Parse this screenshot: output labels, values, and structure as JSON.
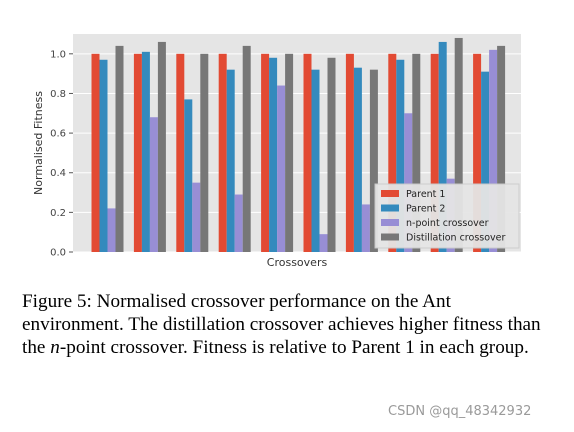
{
  "chart_data": {
    "type": "bar",
    "xlabel": "Crossovers",
    "ylabel": "Normalised Fitness",
    "ylim": [
      0,
      1.1
    ],
    "yticks": [
      "0.0",
      "0.2",
      "0.4",
      "0.6",
      "0.8",
      "1.0"
    ],
    "grid": true,
    "legend_position": "lower-right",
    "series": [
      {
        "name": "Parent 1",
        "color": "#e24a33",
        "values": [
          1.0,
          1.0,
          1.0,
          1.0,
          1.0,
          1.0,
          1.0,
          1.0,
          1.0,
          1.0
        ]
      },
      {
        "name": "Parent 2",
        "color": "#348abd",
        "values": [
          0.97,
          1.01,
          0.77,
          0.92,
          0.98,
          0.92,
          0.93,
          0.97,
          1.06,
          0.91
        ]
      },
      {
        "name": "n-point crossover",
        "color": "#988ed5",
        "values": [
          0.22,
          0.68,
          0.35,
          0.29,
          0.84,
          0.09,
          0.24,
          0.7,
          0.37,
          1.02
        ]
      },
      {
        "name": "Distillation crossover",
        "color": "#777777",
        "values": [
          1.04,
          1.06,
          1.0,
          1.04,
          1.0,
          0.98,
          0.92,
          1.0,
          1.08,
          1.04
        ]
      }
    ]
  },
  "caption": "Figure 5: Normalised crossover performance on the Ant environment. The distillation crossover achieves higher fitness than the n-point crossover. Fitness is relative to Parent 1 in each group.",
  "watermark": "CSDN @qq_48342932"
}
